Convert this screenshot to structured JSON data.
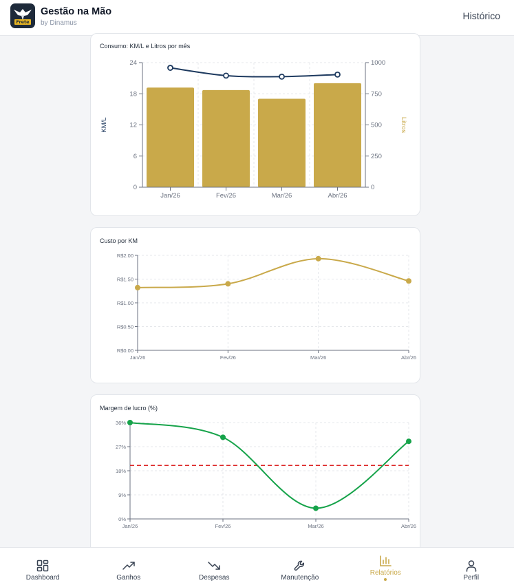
{
  "header": {
    "title": "Gestão na Mão",
    "subtitle": "by Dinamus",
    "logo_text": "Frete",
    "history_link": "Histórico"
  },
  "colors": {
    "gold": "#c9a94a",
    "navy": "#1e3a5f",
    "green": "#16a34a",
    "red": "#dc2626"
  },
  "nav": {
    "items": [
      {
        "label": "Dashboard",
        "icon": "dashboard-grid-icon"
      },
      {
        "label": "Ganhos",
        "icon": "trending-up-icon"
      },
      {
        "label": "Despesas",
        "icon": "trending-down-icon"
      },
      {
        "label": "Manutenção",
        "icon": "wrench-icon"
      },
      {
        "label": "Relatórios",
        "icon": "bar-chart-icon",
        "active": true
      },
      {
        "label": "Perfil",
        "icon": "user-icon"
      }
    ]
  },
  "chart_data": [
    {
      "type": "bar",
      "title": "Consumo: KM/L e Litros por mês",
      "categories": [
        "Jan/26",
        "Fev/26",
        "Mar/26",
        "Abr/26"
      ],
      "bars": {
        "name": "Litros",
        "axis": "right",
        "values": [
          800,
          780,
          710,
          835
        ]
      },
      "line": {
        "name": "KM/L",
        "axis": "left",
        "values": [
          23,
          21.5,
          21.3,
          21.7
        ]
      },
      "ylabel": "KM/L",
      "y2label": "Litros",
      "yticks": [
        "0",
        "6",
        "12",
        "18",
        "24"
      ],
      "y2ticks": [
        "0",
        "250",
        "500",
        "750",
        "1000"
      ],
      "ylim": [
        0,
        24
      ],
      "y2lim": [
        0,
        1000
      ],
      "grid": true
    },
    {
      "type": "line",
      "title": "Custo por KM",
      "categories": [
        "Jan/26",
        "Fev/26",
        "Mar/26",
        "Abr/26"
      ],
      "values": [
        1.32,
        1.4,
        1.93,
        1.46
      ],
      "yticks": [
        "R$0.00",
        "R$0.50",
        "R$1.00",
        "R$1.50",
        "R$2.00"
      ],
      "ylim": [
        0,
        2
      ],
      "grid": true
    },
    {
      "type": "line",
      "title": "Margem de lucro (%)",
      "categories": [
        "Jan/26",
        "Fev/26",
        "Mar/26",
        "Abr/26"
      ],
      "values": [
        36,
        30.5,
        4,
        29
      ],
      "reference_line": 20,
      "yticks": [
        "0%",
        "9%",
        "18%",
        "27%",
        "36%"
      ],
      "ylim": [
        0,
        36
      ],
      "grid": true
    }
  ]
}
